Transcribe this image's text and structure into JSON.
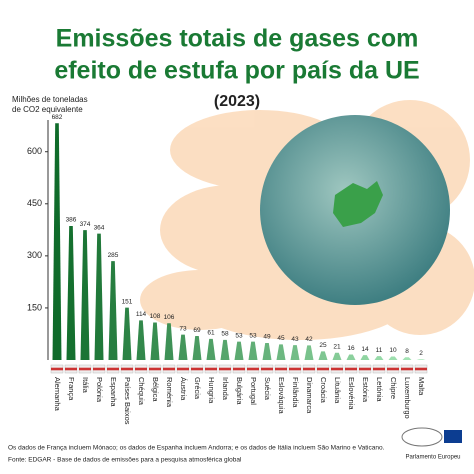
{
  "chart_data": {
    "type": "bar",
    "title": [
      "Emissões totais de gases com",
      "efeito de estufa por país da UE"
    ],
    "subtitle": "(2023)",
    "y_label": [
      "Milhões de toneladas",
      "de CO2 equivalente"
    ],
    "categories": [
      "Alemanha",
      "França",
      "Itália",
      "Polónia",
      "Espanha",
      "Países Baixos",
      "Chéquia",
      "Bélgica",
      "Roménia",
      "Áustria",
      "Grécia",
      "Hungria",
      "Irlanda",
      "Bulgária",
      "Portugal",
      "Suécia",
      "Eslováquia",
      "Finlândia",
      "Dinamarca",
      "Croácia",
      "Lituânia",
      "Eslovénia",
      "Estónia",
      "Letónia",
      "Chipre",
      "Luxemburgo",
      "Malta"
    ],
    "values": [
      682,
      386,
      374,
      364,
      285,
      151,
      114,
      108,
      106,
      73,
      69,
      61,
      58,
      53,
      53,
      49,
      45,
      43,
      42,
      25,
      21,
      16,
      14,
      11,
      10,
      8,
      2
    ],
    "color": "#0f6b2a",
    "color_light": "#a8e8b8",
    "ylim": [
      0,
      700
    ],
    "yticks": [
      150,
      300,
      450,
      600
    ],
    "notes": [
      "Os dados de França incluem Mónaco; os dados de Espanha incluem Andorra; e os dados de Itália incluem São Marino e Vaticano.",
      "Fonte: EDGAR - Base de dados de emissões para a pesquisa atmosférica global"
    ],
    "logo": "Parlamento Europeu"
  }
}
